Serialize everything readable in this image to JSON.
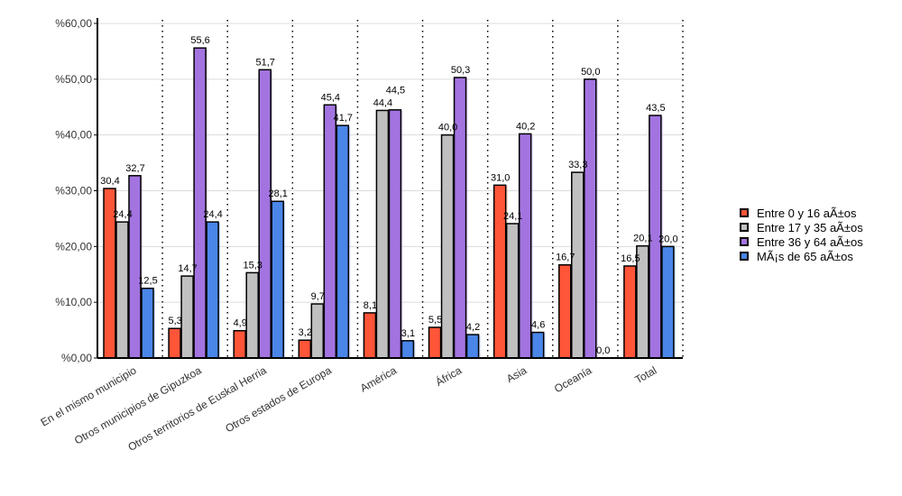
{
  "chart_data": {
    "type": "bar",
    "title": "",
    "xlabel": "",
    "ylabel": "",
    "ylim": [
      0,
      60
    ],
    "yticks": [
      "%0,00",
      "%10,00",
      "%20,00",
      "%30,00",
      "%40,00",
      "%50,00",
      "%60,00"
    ],
    "grid": true,
    "legend_position": "right",
    "categories": [
      "En el mismo municipio",
      "Otros municipios de Gipuzkoa",
      "Otros territorios de Euskal Herria",
      "Otros estados de Europa",
      "América",
      "África",
      "Asia",
      "Oceanía",
      "Total"
    ],
    "series": [
      {
        "name": "Entre 0 y 16 aÃ±os",
        "color": "#ff5538",
        "values": [
          30.4,
          5.3,
          4.9,
          3.2,
          8.1,
          5.5,
          31.0,
          16.7,
          16.5
        ],
        "labels": [
          "30,4",
          "5,3",
          "4,9",
          "3,2",
          "8,1",
          "5,5",
          "31,0",
          "16,7",
          "16,5"
        ]
      },
      {
        "name": "Entre 17 y 35 aÃ±os",
        "color": "#c0c0c0",
        "values": [
          24.4,
          14.7,
          15.3,
          9.7,
          44.4,
          40.0,
          24.1,
          33.3,
          20.1
        ],
        "labels": [
          "24,4",
          "14,7",
          "15,3",
          "9,7",
          "44,4",
          "40,0",
          "24,1",
          "33,3",
          "20,1"
        ]
      },
      {
        "name": "Entre 36 y 64 aÃ±os",
        "color": "#a374e0",
        "values": [
          32.7,
          55.6,
          51.7,
          45.4,
          44.5,
          50.3,
          40.2,
          50.0,
          43.5
        ],
        "labels": [
          "32,7",
          "55,6",
          "51,7",
          "45,4",
          "44,5",
          "50,3",
          "40,2",
          "50,0",
          "43,5"
        ]
      },
      {
        "name": "MÃ¡s de 65 aÃ±os",
        "color": "#4a86e8",
        "values": [
          12.5,
          24.4,
          28.1,
          41.7,
          3.1,
          4.2,
          4.6,
          0.0,
          20.0
        ],
        "labels": [
          "12,5",
          "24,4",
          "28,1",
          "41,7",
          "3,1",
          "4,2",
          "4,6",
          "0,0",
          "20,0"
        ]
      }
    ]
  }
}
